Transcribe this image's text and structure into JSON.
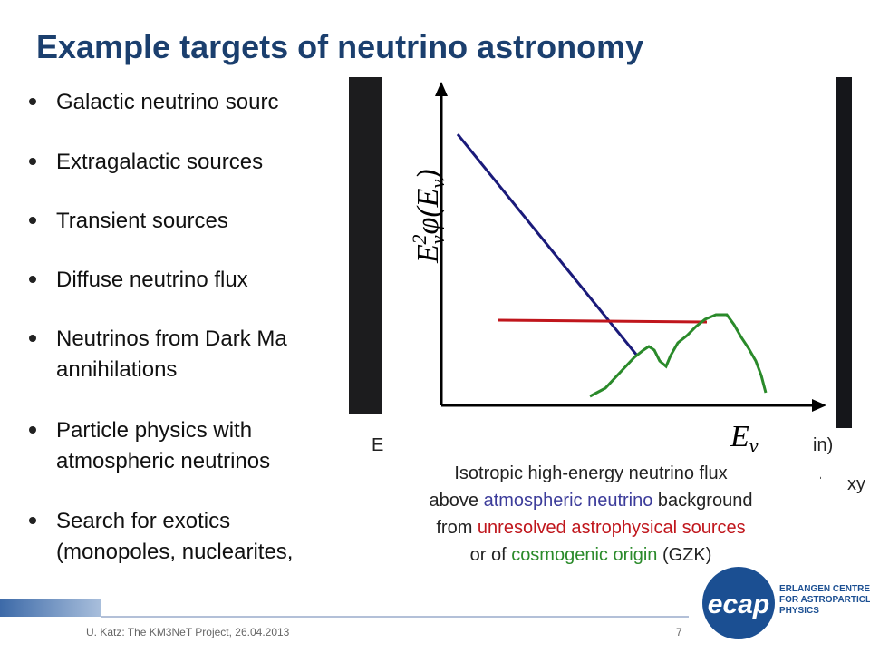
{
  "header": {
    "title": "Example targets of neutrino astronomy"
  },
  "bullets": [
    [
      "Galactic neutrino sourc"
    ],
    [
      "Extragalactic sources"
    ],
    [
      "Transient sources"
    ],
    [
      "Diffuse neutrino flux"
    ],
    [
      "Neutrinos from Dark Ma",
      "annihilations"
    ],
    [
      "Particle physics with",
      "atmospheric neutrinos"
    ],
    [
      "Search for exotics",
      "(monopoles, nuclearites,"
    ]
  ],
  "hidden_fragments": [
    "E",
    "in)",
    ".",
    "xy"
  ],
  "plot": {
    "y_label": [
      {
        "text": "E",
        "role": "base"
      },
      {
        "text": "ν",
        "role": "sub"
      },
      {
        "text": "2",
        "role": "sup"
      },
      {
        "text": "φ(E",
        "role": "base"
      },
      {
        "text": "ν",
        "role": "sub"
      },
      {
        "text": ")",
        "role": "base"
      }
    ],
    "x_label": [
      {
        "text": "E",
        "role": "base"
      },
      {
        "text": "ν",
        "role": "sub"
      }
    ]
  },
  "caption": [
    [
      {
        "text": "Isotropic high-energy neutrino flux",
        "color": "#222222"
      }
    ],
    [
      {
        "text": "above ",
        "color": "#222222"
      },
      {
        "text": "atmospheric neutrino",
        "color": "#3c3c9a"
      },
      {
        "text": " background",
        "color": "#222222"
      }
    ],
    [
      {
        "text": "from ",
        "color": "#222222"
      },
      {
        "text": "unresolved astrophysical sources",
        "color": "#c0161c"
      }
    ],
    [
      {
        "text": "or of ",
        "color": "#222222"
      },
      {
        "text": "cosmogenic origin",
        "color": "#2a8a2a"
      },
      {
        "text": " (GZK)",
        "color": "#222222"
      }
    ]
  ],
  "footer": {
    "text": "U. Katz: The KM3NeT Project, 26.04.2013",
    "page": "7"
  },
  "logo": {
    "mark": "ecap",
    "lines": [
      "ERLANGEN CENTRE",
      "FOR ASTROPARTICLE",
      "PHYSICS"
    ]
  }
}
